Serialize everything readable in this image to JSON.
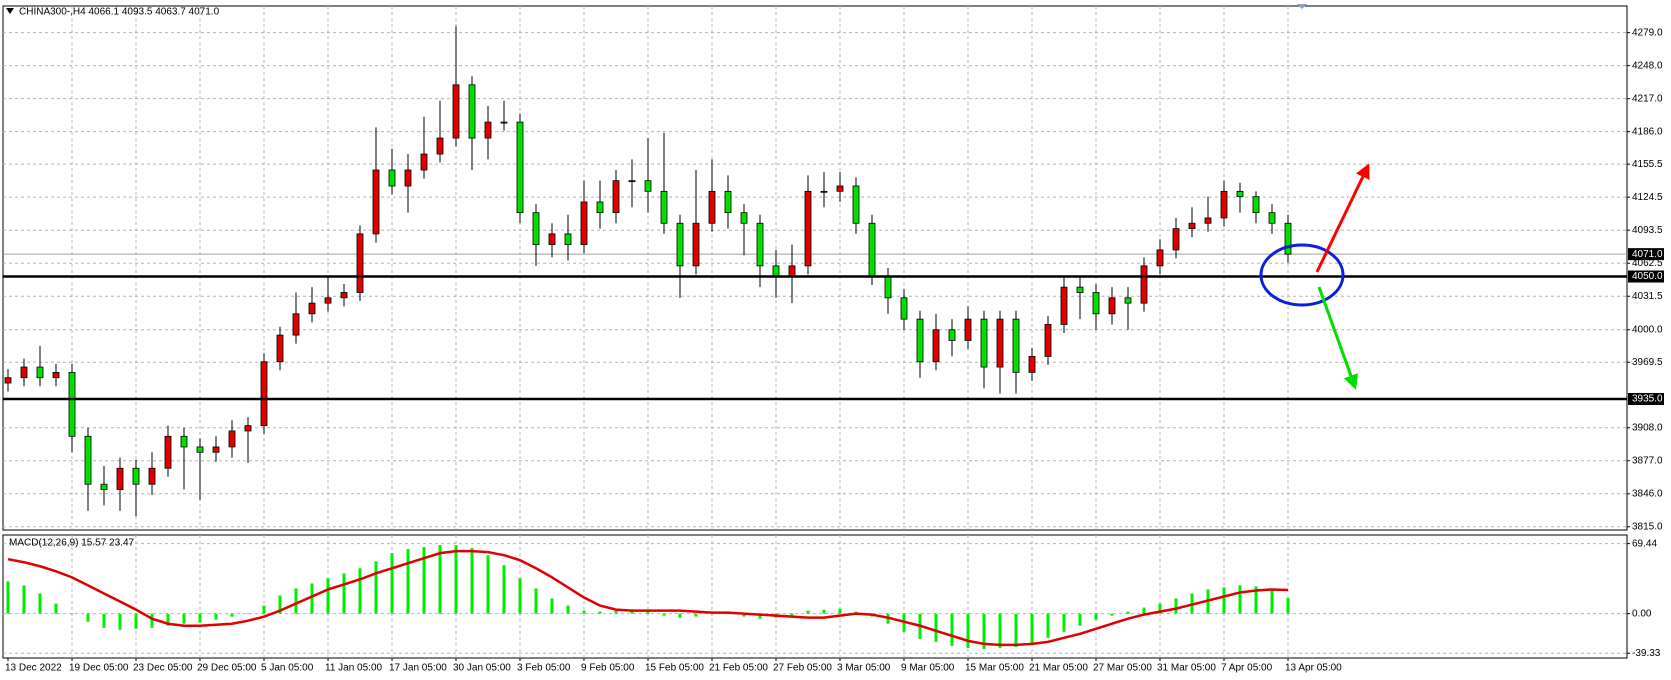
{
  "chart_data": [
    {
      "type": "candlestick",
      "title": "CHINA300-,H4  4066.1 4093.5 4063.7 4071.0",
      "categories": [
        "13 Dec 2022",
        null,
        null,
        null,
        "19 Dec 05:00",
        null,
        null,
        null,
        "23 Dec 05:00",
        null,
        null,
        null,
        "29 Dec 05:00",
        null,
        null,
        null,
        "5 Jan 05:00",
        null,
        null,
        null,
        "11 Jan 05:00",
        null,
        null,
        null,
        "17 Jan 05:00",
        null,
        null,
        null,
        "30 Jan 05:00",
        null,
        null,
        null,
        "3 Feb 05:00",
        null,
        null,
        null,
        "9 Feb 05:00",
        null,
        null,
        null,
        "15 Feb 05:00",
        null,
        null,
        null,
        "21 Feb 05:00",
        null,
        null,
        null,
        "27 Feb 05:00",
        null,
        null,
        null,
        "3 Mar 05:00",
        null,
        null,
        null,
        "9 Mar 05:00",
        null,
        null,
        null,
        "15 Mar 05:00",
        null,
        null,
        null,
        "21 Mar 05:00",
        null,
        null,
        null,
        "27 Mar 05:00",
        null,
        null,
        null,
        "31 Mar 05:00",
        null,
        null,
        null,
        "7 Apr 05:00",
        null,
        null,
        null,
        "13 Apr 05:00"
      ],
      "open": [
        3950,
        3955,
        3965,
        3955,
        3960,
        3900,
        3855,
        3850,
        3870,
        3855,
        3870,
        3900,
        3890,
        3885,
        3890,
        3905,
        3910,
        3970,
        3995,
        4015,
        4025,
        4030,
        4035,
        4090,
        4150,
        4135,
        4150,
        4165,
        4180,
        4230,
        4180,
        4195,
        4195,
        4110,
        4080,
        4090,
        4080,
        4120,
        4110,
        4140,
        4140,
        4130,
        4100,
        4060,
        4100,
        4130,
        4110,
        4100,
        4060,
        4050,
        4060,
        4130,
        4130,
        4135,
        4100,
        4050,
        4030,
        4010,
        3970,
        4000,
        3990,
        4010,
        3965,
        4010,
        3960,
        3975,
        4005,
        4040,
        4035,
        4015,
        4030,
        4025,
        4060,
        4075,
        4095,
        4100,
        4105,
        4130,
        4125,
        4110,
        4100
      ],
      "high": [
        3963,
        3973,
        3985,
        3968,
        3968,
        3908,
        3872,
        3880,
        3878,
        3885,
        3910,
        3908,
        3898,
        3900,
        3915,
        3918,
        3978,
        4003,
        4035,
        4040,
        4050,
        4043,
        4098,
        4190,
        4170,
        4165,
        4200,
        4215,
        4285,
        4238,
        4210,
        4215,
        4203,
        4118,
        4100,
        4108,
        4140,
        4140,
        4150,
        4160,
        4180,
        4185,
        4108,
        4150,
        4160,
        4145,
        4118,
        4108,
        4075,
        4080,
        4145,
        4148,
        4148,
        4143,
        4108,
        4058,
        4038,
        4018,
        4015,
        4010,
        4022,
        4018,
        4018,
        4018,
        3983,
        4013,
        4050,
        4050,
        4043,
        4040,
        4040,
        4068,
        4085,
        4105,
        4115,
        4125,
        4140,
        4138,
        4130,
        4118,
        4108
      ],
      "low": [
        3942,
        3947,
        3947,
        3947,
        3885,
        3830,
        3835,
        3830,
        3825,
        3845,
        3862,
        3850,
        3840,
        3876,
        3880,
        3875,
        3902,
        3962,
        3987,
        4007,
        4017,
        4022,
        4027,
        4082,
        4127,
        4110,
        4142,
        4157,
        4172,
        4150,
        4160,
        4187,
        4100,
        4060,
        4068,
        4065,
        4072,
        4095,
        4100,
        4115,
        4110,
        4090,
        4030,
        4052,
        4092,
        4095,
        4070,
        4040,
        4030,
        4025,
        4052,
        4115,
        4120,
        4090,
        4042,
        4015,
        4000,
        3955,
        3962,
        3975,
        3982,
        3945,
        3940,
        3940,
        3952,
        3967,
        3997,
        4010,
        4000,
        4005,
        4000,
        4017,
        4052,
        4067,
        4087,
        4092,
        4097,
        4110,
        4100,
        4090,
        4063
      ],
      "close": [
        3955,
        3965,
        3955,
        3960,
        3900,
        3855,
        3850,
        3870,
        3855,
        3870,
        3900,
        3890,
        3885,
        3890,
        3905,
        3910,
        3970,
        3995,
        4015,
        4025,
        4030,
        4035,
        4090,
        4150,
        4135,
        4150,
        4165,
        4180,
        4230,
        4180,
        4195,
        4195,
        4110,
        4080,
        4090,
        4080,
        4120,
        4110,
        4140,
        4140,
        4130,
        4100,
        4060,
        4100,
        4130,
        4110,
        4100,
        4060,
        4050,
        4060,
        4130,
        4130,
        4135,
        4100,
        4050,
        4030,
        4010,
        3970,
        4000,
        3990,
        4010,
        3965,
        4010,
        3960,
        3975,
        4005,
        4040,
        4035,
        4015,
        4030,
        4025,
        4060,
        4075,
        4095,
        4100,
        4105,
        4130,
        4125,
        4110,
        4100,
        4071
      ],
      "up_color": "#e00000",
      "down_color": "#00e000",
      "ylim": [
        3812,
        4304
      ],
      "yticks": [
        {
          "value": 4279,
          "label": "4279.0"
        },
        {
          "value": 4248,
          "label": "4248.0"
        },
        {
          "value": 4217,
          "label": "4217.0"
        },
        {
          "value": 4186,
          "label": "4186.0"
        },
        {
          "value": 4155.5,
          "label": "4155.5"
        },
        {
          "value": 4124.5,
          "label": "4124.5"
        },
        {
          "value": 4093.5,
          "label": "4093.5"
        },
        {
          "value": 4062.5,
          "label": "4062.5"
        },
        {
          "value": 4031.5,
          "label": "4031.5"
        },
        {
          "value": 4000,
          "label": "4000.0"
        },
        {
          "value": 3969.5,
          "label": "3969.5"
        },
        {
          "value": 3908,
          "label": "3908.0"
        },
        {
          "value": 3877,
          "label": "3877.0"
        },
        {
          "value": 3846,
          "label": "3846.0"
        },
        {
          "value": 3815,
          "label": "3815.0"
        }
      ],
      "grid": true,
      "levels": [
        {
          "value": 4050,
          "label": "4050.0"
        },
        {
          "value": 3935,
          "label": "3935.0"
        }
      ],
      "price_line": {
        "value": 4071,
        "label": "4071.0"
      }
    },
    {
      "type": "macd",
      "title": "MACD(12,26,9) 15.57 23.47",
      "series": [
        {
          "kind": "bar",
          "color": "#00ee00",
          "values": [
            32,
            28,
            20,
            10,
            0,
            -8,
            -14,
            -16,
            -15,
            -14,
            -12,
            -10,
            -9,
            -6,
            -3,
            0,
            8,
            18,
            25,
            30,
            35,
            40,
            45,
            52,
            60,
            64,
            66,
            68,
            68,
            65,
            58,
            48,
            35,
            25,
            15,
            8,
            3,
            2,
            3,
            4,
            3,
            -2,
            -4,
            -3,
            0,
            0,
            -3,
            -5,
            -4,
            -2,
            3,
            4,
            5,
            2,
            -3,
            -10,
            -18,
            -25,
            -28,
            -32,
            -34,
            -35,
            -34,
            -33,
            -30,
            -24,
            -18,
            -12,
            -6,
            -2,
            2,
            6,
            10,
            15,
            20,
            24,
            26,
            28,
            27,
            24,
            15.57
          ]
        },
        {
          "kind": "line",
          "color": "#e00000",
          "values": [
            54,
            51,
            47,
            42,
            36,
            28,
            20,
            12,
            4,
            -5,
            -10,
            -12,
            -12,
            -11,
            -10,
            -7,
            -3,
            3,
            10,
            17,
            24,
            29,
            34,
            40,
            45,
            50,
            55,
            60,
            62,
            62,
            61,
            58,
            53,
            45,
            36,
            26,
            16,
            8,
            4,
            3,
            3,
            3,
            3,
            2,
            1,
            1,
            0,
            -1,
            -2,
            -3,
            -4,
            -4,
            -2,
            0,
            -1,
            -4,
            -8,
            -12,
            -17,
            -22,
            -27,
            -30,
            -31,
            -31,
            -30,
            -28,
            -24,
            -20,
            -15,
            -10,
            -5,
            -1,
            2,
            5,
            9,
            13,
            17,
            21,
            23,
            24,
            23.47
          ]
        }
      ],
      "ylim": [
        -44,
        78
      ],
      "yticks": [
        {
          "value": 69.44,
          "label": "69.44"
        },
        {
          "value": 0,
          "label": "0.00"
        },
        {
          "value": -39.33,
          "label": "-39.33"
        }
      ],
      "grid": true
    }
  ]
}
